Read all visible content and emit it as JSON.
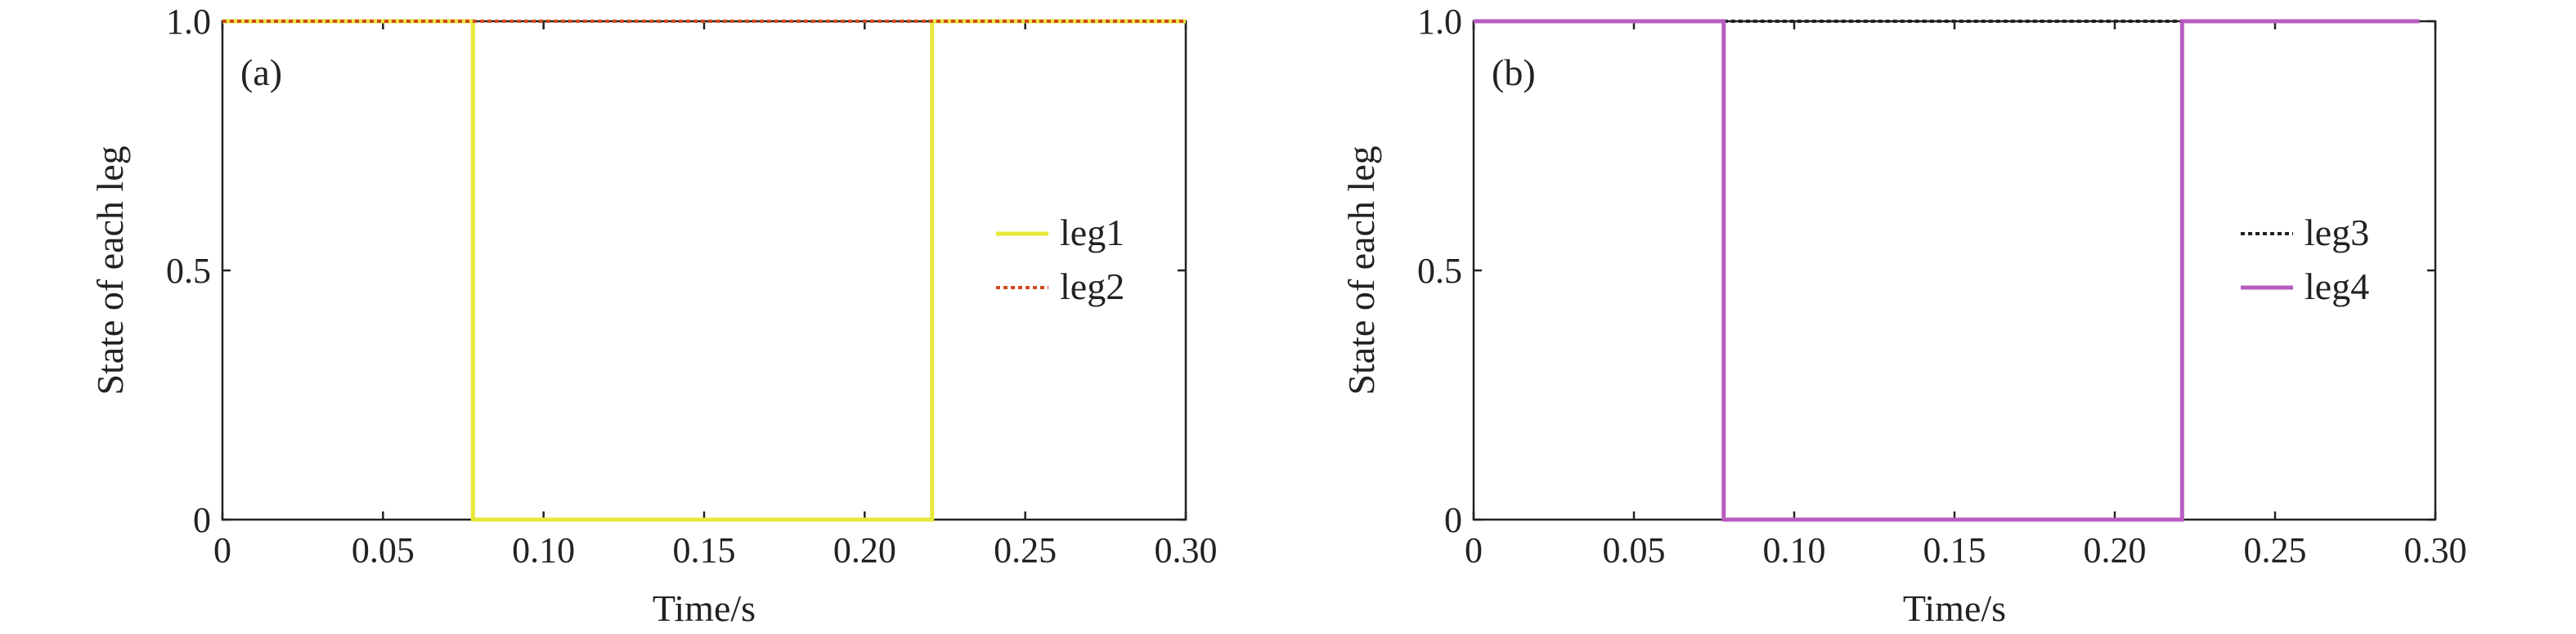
{
  "chart_data": [
    {
      "type": "line",
      "panel_label": "(a)",
      "xlabel": "Time/s",
      "ylabel": "State of each leg",
      "xlim": [
        0,
        0.3
      ],
      "ylim": [
        0,
        1.0
      ],
      "xticks": [
        "0",
        "0.05",
        "0.10",
        "0.15",
        "0.20",
        "0.25",
        "0.30"
      ],
      "yticks": [
        "0",
        "0.5",
        "1.0"
      ],
      "legend_position": "right",
      "series": [
        {
          "name": "leg1",
          "color": "#e8e83a",
          "style": "solid",
          "x": [
            0,
            0.078,
            0.078,
            0.221,
            0.221,
            0.3
          ],
          "y": [
            1,
            1,
            0,
            0,
            1,
            1
          ]
        },
        {
          "name": "leg2",
          "color": "#d04a1e",
          "style": "dotted",
          "x": [
            0,
            0.3
          ],
          "y": [
            1,
            1
          ]
        }
      ]
    },
    {
      "type": "line",
      "panel_label": "(b)",
      "xlabel": "Time/s",
      "ylabel": "State of each leg",
      "xlim": [
        0,
        0.3
      ],
      "ylim": [
        0,
        1.0
      ],
      "xticks": [
        "0",
        "0.05",
        "0.10",
        "0.15",
        "0.20",
        "0.25",
        "0.30"
      ],
      "yticks": [
        "0",
        "0.5",
        "1.0"
      ],
      "legend_position": "right",
      "series": [
        {
          "name": "leg3",
          "color": "#222222",
          "style": "dotted",
          "x": [
            0.078,
            0.221
          ],
          "y": [
            1,
            1
          ]
        },
        {
          "name": "leg4",
          "color": "#b85cc0",
          "style": "solid",
          "x": [
            0,
            0.078,
            0.078,
            0.221,
            0.221,
            0.295
          ],
          "y": [
            1,
            1,
            0,
            0,
            1,
            1
          ]
        }
      ]
    }
  ]
}
